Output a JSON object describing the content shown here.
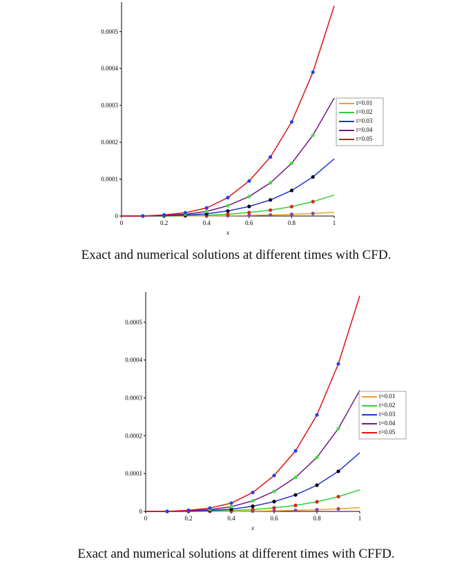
{
  "chart_data": [
    {
      "type": "line",
      "caption": "Exact and numerical solutions at different times with CFD.",
      "x_label": "x",
      "x": [
        0,
        0.1,
        0.2,
        0.3,
        0.4,
        0.5,
        0.6,
        0.7,
        0.8,
        0.9,
        1
      ],
      "marker_x": [
        0.1,
        0.2,
        0.3,
        0.4,
        0.5,
        0.6,
        0.7,
        0.8,
        0.9
      ],
      "xlim": [
        0,
        1
      ],
      "xticks": [
        0,
        0.2,
        0.4,
        0.6,
        0.8,
        1
      ],
      "ylim": [
        0,
        0.00058
      ],
      "yticks": [
        0,
        0.0001,
        0.0002,
        0.0003,
        0.0004,
        0.0005
      ],
      "legend": "right",
      "series": [
        {
          "name": "t=0.01",
          "color": "#f0a020",
          "marker_color": "#9040b0",
          "values": [
            0,
            0,
            0,
            2e-07,
            4e-07,
            9e-07,
            1.7e-06,
            2.8e-06,
            4.5e-06,
            6.8e-06,
            1e-05
          ],
          "marker_values": [
            0,
            0,
            2e-07,
            4e-07,
            9e-07,
            1.7e-06,
            2.8e-06,
            4.5e-06,
            6.8e-06
          ]
        },
        {
          "name": "t=0.02",
          "color": "#30d030",
          "marker_color": "#e02020",
          "values": [
            0,
            0,
            0,
            9e-07,
            2.2e-06,
            5e-06,
            9.5e-06,
            1.6e-05,
            2.55e-05,
            3.9e-05,
            5.7e-05
          ],
          "marker_values": [
            0,
            0,
            9e-07,
            2.2e-06,
            5e-06,
            9.5e-06,
            1.6e-05,
            2.55e-05,
            3.9e-05
          ]
        },
        {
          "name": "t=0.03",
          "color": "#2030d0",
          "marker_color": "#000000",
          "values": [
            0,
            0,
            8e-07,
            2.5e-06,
            6e-06,
            1.37e-05,
            2.6e-05,
            4.36e-05,
            6.93e-05,
            0.000106,
            0.000155
          ],
          "marker_values": [
            0,
            8e-07,
            2.5e-06,
            6e-06,
            1.37e-05,
            2.6e-05,
            4.36e-05,
            6.93e-05,
            0.000106
          ]
        },
        {
          "name": "t=0.04",
          "color": "#701880",
          "marker_color": "#40e040",
          "values": [
            0,
            0,
            1.7e-06,
            5e-06,
            1.24e-05,
            2.8e-05,
            5.3e-05,
            9e-05,
            0.000143,
            0.000219,
            0.00032
          ],
          "marker_values": [
            0,
            1.7e-06,
            5e-06,
            1.24e-05,
            2.8e-05,
            5.3e-05,
            9e-05,
            0.000143,
            0.000219
          ]
        },
        {
          "name": "t=0.05",
          "color": "#e01010",
          "marker_color": "#2040f0",
          "values": [
            0,
            2e-07,
            3e-06,
            9e-06,
            2.2e-05,
            5e-05,
            9.5e-05,
            0.00016,
            0.000255,
            0.00039,
            0.00057
          ],
          "marker_values": [
            2e-07,
            3e-06,
            9e-06,
            2.2e-05,
            5e-05,
            9.5e-05,
            0.00016,
            0.000255,
            0.00039
          ]
        }
      ]
    },
    {
      "type": "line",
      "caption": "Exact and numerical solutions at different times with CFFD.",
      "x_label": "x",
      "x": [
        0,
        0.1,
        0.2,
        0.3,
        0.4,
        0.5,
        0.6,
        0.7,
        0.8,
        0.9,
        1
      ],
      "marker_x": [
        0.1,
        0.2,
        0.3,
        0.4,
        0.5,
        0.6,
        0.7,
        0.8,
        0.9
      ],
      "xlim": [
        0,
        1
      ],
      "xticks": [
        0,
        0.2,
        0.4,
        0.6,
        0.8,
        1
      ],
      "ylim": [
        0,
        0.00058
      ],
      "yticks": [
        0,
        0.0001,
        0.0002,
        0.0003,
        0.0004,
        0.0005
      ],
      "legend": "right",
      "series": [
        {
          "name": "t=0.01",
          "color": "#f0a020",
          "marker_color": "#9040b0",
          "values": [
            0,
            0,
            0,
            2e-07,
            4e-07,
            9e-07,
            1.7e-06,
            2.8e-06,
            4.5e-06,
            6.8e-06,
            1e-05
          ],
          "marker_values": [
            0,
            0,
            2e-07,
            4e-07,
            9e-07,
            1.7e-06,
            2.8e-06,
            4.5e-06,
            6.8e-06
          ]
        },
        {
          "name": "t=0.02",
          "color": "#30d030",
          "marker_color": "#e02020",
          "values": [
            0,
            0,
            0,
            9e-07,
            2.2e-06,
            5e-06,
            9.5e-06,
            1.6e-05,
            2.55e-05,
            3.9e-05,
            5.7e-05
          ],
          "marker_values": [
            0,
            0,
            9e-07,
            2.2e-06,
            5e-06,
            9.5e-06,
            1.6e-05,
            2.55e-05,
            3.9e-05
          ]
        },
        {
          "name": "t=0.03",
          "color": "#2030d0",
          "marker_color": "#000000",
          "values": [
            0,
            0,
            8e-07,
            2.5e-06,
            6e-06,
            1.37e-05,
            2.6e-05,
            4.36e-05,
            6.93e-05,
            0.000106,
            0.000155
          ],
          "marker_values": [
            0,
            8e-07,
            2.5e-06,
            6e-06,
            1.37e-05,
            2.6e-05,
            4.36e-05,
            6.93e-05,
            0.000106
          ]
        },
        {
          "name": "t=0.04",
          "color": "#701880",
          "marker_color": "#40e040",
          "values": [
            0,
            0,
            1.7e-06,
            5e-06,
            1.24e-05,
            2.8e-05,
            5.3e-05,
            9e-05,
            0.000143,
            0.000219,
            0.00032
          ],
          "marker_values": [
            0,
            1.7e-06,
            5e-06,
            1.24e-05,
            2.8e-05,
            5.3e-05,
            9e-05,
            0.000143,
            0.000219
          ]
        },
        {
          "name": "t=0.05",
          "color": "#e01010",
          "marker_color": "#2040f0",
          "values": [
            0,
            2e-07,
            3e-06,
            9e-06,
            2.2e-05,
            5e-05,
            9.5e-05,
            0.00016,
            0.000255,
            0.00039,
            0.00057
          ],
          "marker_values": [
            2e-07,
            3e-06,
            9e-06,
            2.2e-05,
            5e-05,
            9.5e-05,
            0.00016,
            0.000255,
            0.00039
          ]
        }
      ]
    }
  ]
}
